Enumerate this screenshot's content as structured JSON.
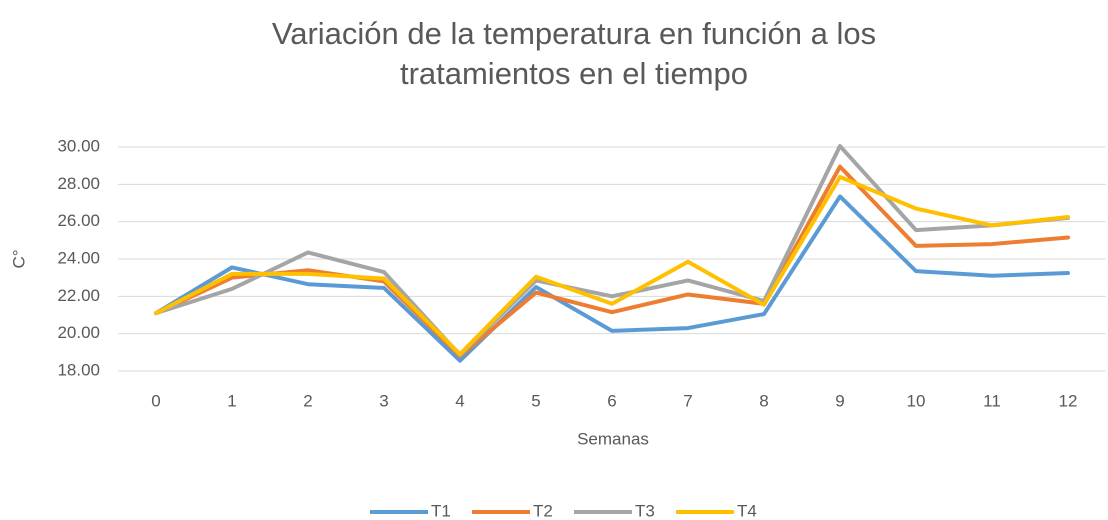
{
  "chart_data": {
    "type": "line",
    "title": "Variación de la temperatura en función a los tratamientos en el tiempo",
    "x_label": "Semanas",
    "y_label": "C°",
    "categories": [
      "0",
      "1",
      "2",
      "3",
      "4",
      "5",
      "6",
      "7",
      "8",
      "9",
      "10",
      "11",
      "12"
    ],
    "series": [
      {
        "name": "T1",
        "color": "#5b9bd5",
        "values": [
          21.1,
          23.55,
          22.65,
          22.45,
          18.55,
          22.5,
          20.15,
          20.3,
          21.05,
          27.35,
          23.35,
          23.1,
          23.25
        ]
      },
      {
        "name": "T2",
        "color": "#ed7d31",
        "values": [
          21.1,
          23.0,
          23.4,
          22.8,
          18.8,
          22.2,
          21.15,
          22.1,
          21.6,
          28.95,
          24.7,
          24.8,
          25.15
        ]
      },
      {
        "name": "T3",
        "color": "#a5a5a5",
        "values": [
          21.1,
          22.4,
          24.35,
          23.3,
          18.85,
          22.85,
          22.0,
          22.85,
          21.75,
          30.05,
          25.55,
          25.8,
          26.2
        ]
      },
      {
        "name": "T4",
        "color": "#ffc000",
        "values": [
          21.1,
          23.2,
          23.2,
          22.95,
          18.9,
          23.05,
          21.6,
          23.85,
          21.55,
          28.4,
          26.7,
          25.8,
          26.25
        ]
      }
    ],
    "ylim": [
      18,
      30
    ],
    "yticks": [
      {
        "value": 18,
        "label": "18.00"
      },
      {
        "value": 20,
        "label": "20.00"
      },
      {
        "value": 22,
        "label": "22.00"
      },
      {
        "value": 24,
        "label": "24.00"
      },
      {
        "value": 26,
        "label": "26.00"
      },
      {
        "value": 28,
        "label": "28.00"
      },
      {
        "value": 30,
        "label": "30.00"
      }
    ],
    "grid": true,
    "legend": "bottom"
  }
}
